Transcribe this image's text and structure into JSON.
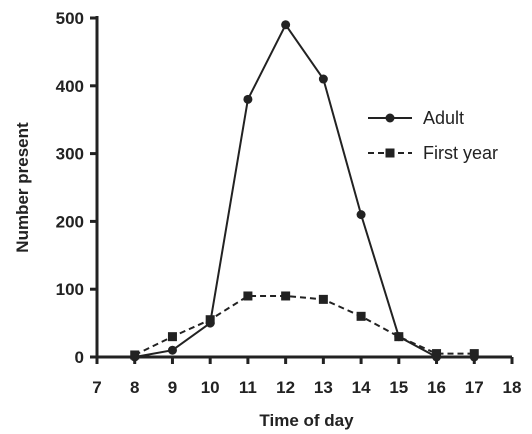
{
  "chart_data": {
    "type": "line",
    "xlabel": "Time of day",
    "ylabel": "Number present",
    "xlim": [
      7,
      18
    ],
    "ylim": [
      0,
      500
    ],
    "xticks": [
      7,
      8,
      9,
      10,
      11,
      12,
      13,
      14,
      15,
      16,
      17,
      18
    ],
    "yticks": [
      0,
      100,
      200,
      300,
      400,
      500
    ],
    "grid": false,
    "legend_position": "right",
    "series": [
      {
        "name": "Adult",
        "marker": "circle",
        "line_style": "solid",
        "color": "#222222",
        "x": [
          8,
          9,
          10,
          11,
          12,
          13,
          14,
          15,
          16,
          17
        ],
        "y": [
          0,
          10,
          50,
          380,
          490,
          410,
          210,
          30,
          0,
          0
        ]
      },
      {
        "name": "First year",
        "marker": "square",
        "line_style": "dashed",
        "color": "#222222",
        "x": [
          8,
          9,
          10,
          11,
          12,
          13,
          14,
          15,
          16,
          17
        ],
        "y": [
          3,
          30,
          55,
          90,
          90,
          85,
          60,
          30,
          5,
          5
        ]
      }
    ]
  }
}
